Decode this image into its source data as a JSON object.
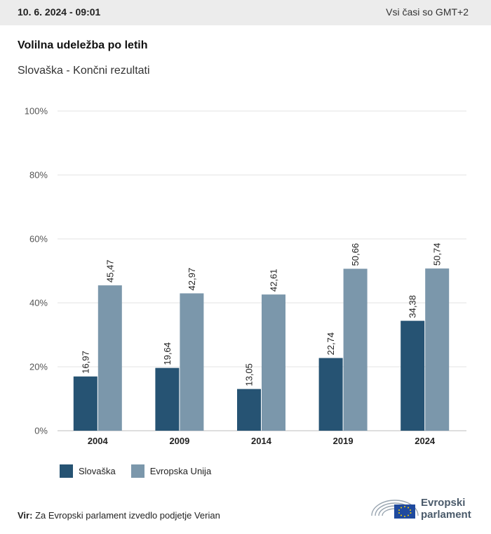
{
  "header": {
    "date": "10. 6. 2024 - 09:01",
    "timezone": "Vsi časi so GMT+2"
  },
  "title": "Volilna udeležba po letih",
  "subtitle": "Slovaška - Končni rezultati",
  "source": {
    "label": "Vir:",
    "text": "Za Evropski parlament izvedlo podjetje Verian"
  },
  "logo": {
    "line1": "Evropski",
    "line2": "parlament"
  },
  "colors": {
    "series1": "#265373",
    "series2": "#7b97ab",
    "grid": "#e3e3e3",
    "axis": "#bdbdbd"
  },
  "chart_data": {
    "type": "bar",
    "categories": [
      "2004",
      "2009",
      "2014",
      "2019",
      "2024"
    ],
    "series": [
      {
        "name": "Slovaška",
        "values": [
          16.97,
          19.64,
          13.05,
          22.74,
          34.38
        ],
        "labels": [
          "16,97",
          "19,64",
          "13,05",
          "22,74",
          "34,38"
        ]
      },
      {
        "name": "Evropska Unija",
        "values": [
          45.47,
          42.97,
          42.61,
          50.66,
          50.74
        ],
        "labels": [
          "45,47",
          "42,97",
          "42,61",
          "50,66",
          "50,74"
        ]
      }
    ],
    "yticks": [
      "0%",
      "20%",
      "40%",
      "60%",
      "80%",
      "100%"
    ],
    "ylim": [
      0,
      100
    ],
    "grid": true,
    "legend_position": "bottom-left"
  }
}
